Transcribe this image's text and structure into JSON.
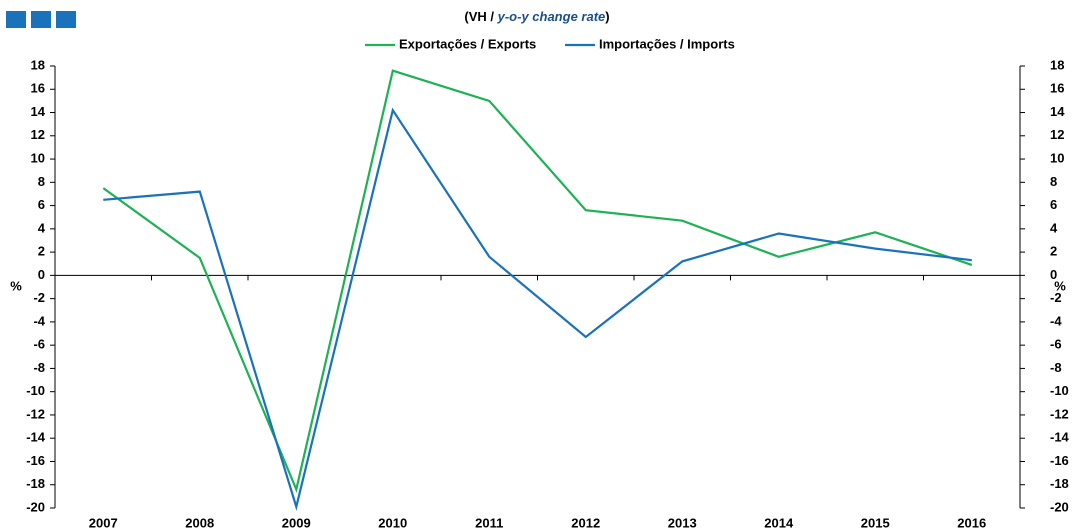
{
  "chart_data": {
    "type": "line",
    "subtitle_prefix": "(VH / ",
    "subtitle_emphasis": "y-o-y change rate",
    "subtitle_suffix": ")",
    "categories": [
      "2007",
      "2008",
      "2009",
      "2010",
      "2011",
      "2012",
      "2013",
      "2014",
      "2015",
      "2016"
    ],
    "series": [
      {
        "name": "Exportações / Exports",
        "color": "#1db254",
        "values": [
          7.5,
          1.5,
          -18.4,
          17.6,
          15.0,
          5.6,
          4.7,
          1.6,
          3.7,
          0.9
        ]
      },
      {
        "name": "Importações / Imports",
        "color": "#1a73ba",
        "values": [
          6.5,
          7.2,
          -19.9,
          14.2,
          1.6,
          -5.3,
          1.2,
          3.6,
          2.3,
          1.3
        ]
      }
    ],
    "y_label": "%",
    "y2_label": "%",
    "ylim": [
      -20,
      18
    ],
    "yticks": [
      -20,
      -18,
      -16,
      -14,
      -12,
      -10,
      -8,
      -6,
      -4,
      -2,
      0,
      2,
      4,
      6,
      8,
      10,
      12,
      14,
      16,
      18
    ],
    "y2lim": [
      -20,
      18
    ],
    "y2ticks": [
      -20,
      -18,
      -16,
      -14,
      -12,
      -10,
      -8,
      -6,
      -4,
      -2,
      0,
      2,
      4,
      6,
      8,
      10,
      12,
      14,
      16,
      18
    ],
    "legend": "top",
    "grid": false
  }
}
